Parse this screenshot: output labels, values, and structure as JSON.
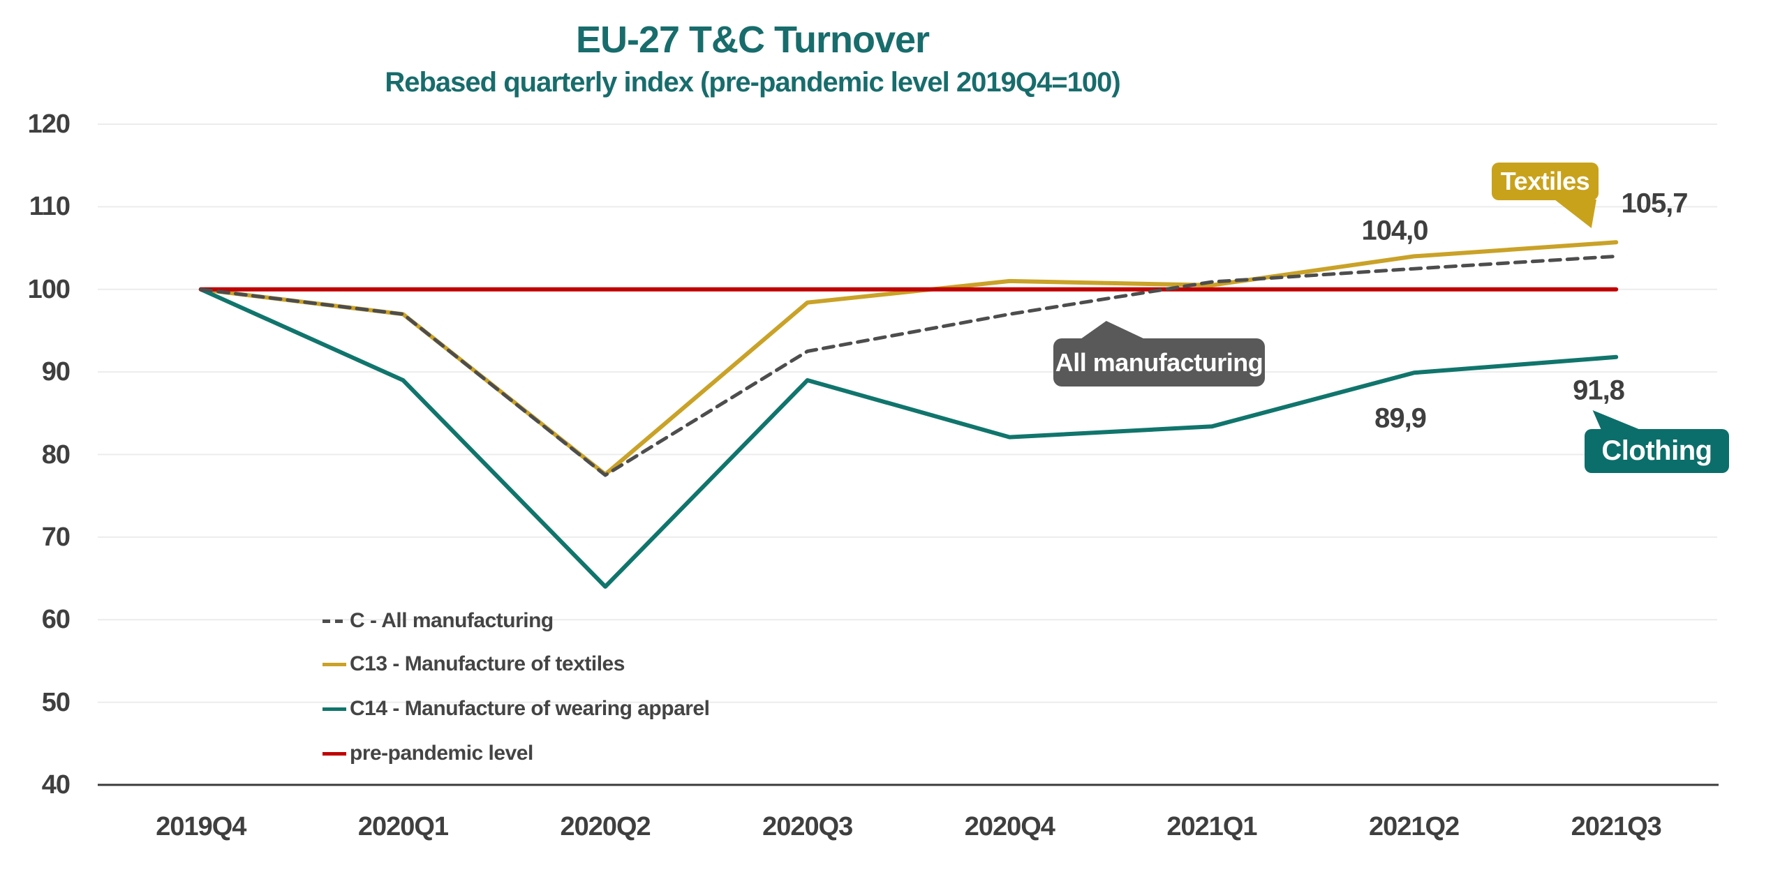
{
  "chart": {
    "title": "EU-27 T&C Turnover",
    "subtitle": "Rebased quarterly index (pre-pandemic level 2019Q4=100)"
  },
  "chart_data": {
    "type": "line",
    "title": "EU-27 T&C Turnover",
    "subtitle": "Rebased quarterly index (pre-pandemic level 2019Q4=100)",
    "categories": [
      "2019Q4",
      "2020Q1",
      "2020Q2",
      "2020Q3",
      "2020Q4",
      "2021Q1",
      "2021Q2",
      "2021Q3"
    ],
    "series": [
      {
        "name": "C - All manufacturing",
        "style": "dashed",
        "color": "#4D4D4D",
        "values": [
          100.0,
          97.0,
          77.5,
          92.5,
          97.0,
          100.9,
          102.5,
          104.0
        ]
      },
      {
        "name": "C13 - Manufacture of textiles",
        "style": "solid",
        "color": "#C9A227",
        "values": [
          100.0,
          97.0,
          77.6,
          98.4,
          101.0,
          100.5,
          104.0,
          105.7
        ]
      },
      {
        "name": "C14 - Manufacture of wearing apparel",
        "style": "solid",
        "color": "#10756C",
        "values": [
          100.0,
          89.0,
          64.0,
          89.0,
          82.1,
          83.4,
          89.9,
          91.8
        ]
      },
      {
        "name": "pre-pandemic level",
        "style": "solid",
        "color": "#C00000",
        "values": [
          100,
          100,
          100,
          100,
          100,
          100,
          100,
          100
        ]
      }
    ],
    "ylim": [
      40,
      120
    ],
    "y_ticks": [
      40,
      50,
      60,
      70,
      80,
      90,
      100,
      110,
      120
    ],
    "grid": "horizontal",
    "legend_position": "inside-bottom-left",
    "decimal_separator": ",",
    "labeled_points": [
      {
        "series": "C13 - Manufacture of textiles",
        "category": "2021Q2",
        "label": "104,0"
      },
      {
        "series": "C13 - Manufacture of textiles",
        "category": "2021Q3",
        "label": "105,7"
      },
      {
        "series": "C14 - Manufacture of wearing apparel",
        "category": "2021Q2",
        "label": "89,9"
      },
      {
        "series": "C14 - Manufacture of wearing apparel",
        "category": "2021Q3",
        "label": "91,8"
      }
    ]
  },
  "legend": {
    "items": [
      {
        "label": "C - All manufacturing",
        "color": "#4D4D4D",
        "style": "dashed"
      },
      {
        "label": "C13 - Manufacture of textiles",
        "color": "#C9A227",
        "style": "solid"
      },
      {
        "label": "C14 - Manufacture of wearing apparel",
        "color": "#10756C",
        "style": "solid"
      },
      {
        "label": "pre-pandemic level",
        "color": "#C00000",
        "style": "solid"
      }
    ]
  },
  "data_labels": {
    "textiles_2021q2": "104,0",
    "textiles_2021q3": "105,7",
    "apparel_2021q2": "89,9",
    "apparel_2021q3": "91,8"
  },
  "callouts": {
    "all_manufacturing": "All manufacturing",
    "textiles": "Textiles",
    "clothing": "Clothing"
  },
  "colors": {
    "title": "#186C6C",
    "axis_text": "#3F3F3F",
    "gridline": "#ECECEC",
    "axis_line": "#3A3A3A",
    "callout_gray": "#595959",
    "callout_gold": "#C9A21C",
    "callout_teal": "#0C6E6A"
  }
}
